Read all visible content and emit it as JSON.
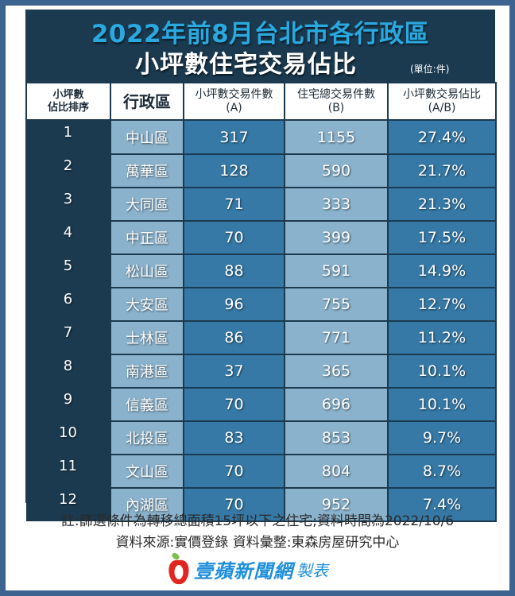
{
  "header": {
    "title_line1": "2022年前8月台北市各行政區",
    "title_line2": "小坪數住宅交易佔比",
    "unit": "(單位:件)"
  },
  "table": {
    "columns": [
      {
        "line1": "小坪數",
        "line2": "佔比排序"
      },
      {
        "line1": "行政區",
        "line2": ""
      },
      {
        "line1": "小坪數交易件數",
        "line2": "(A)"
      },
      {
        "line1": "住宅總交易件數",
        "line2": "(B)"
      },
      {
        "line1": "小坪數交易佔比",
        "line2": "(A/B)"
      }
    ],
    "rows": [
      {
        "rank": "1",
        "district": "中山區",
        "a": "317",
        "b": "1155",
        "ratio": "27.4%"
      },
      {
        "rank": "2",
        "district": "萬華區",
        "a": "128",
        "b": "590",
        "ratio": "21.7%"
      },
      {
        "rank": "3",
        "district": "大同區",
        "a": "71",
        "b": "333",
        "ratio": "21.3%"
      },
      {
        "rank": "4",
        "district": "中正區",
        "a": "70",
        "b": "399",
        "ratio": "17.5%"
      },
      {
        "rank": "5",
        "district": "松山區",
        "a": "88",
        "b": "591",
        "ratio": "14.9%"
      },
      {
        "rank": "6",
        "district": "大安區",
        "a": "96",
        "b": "755",
        "ratio": "12.7%"
      },
      {
        "rank": "7",
        "district": "士林區",
        "a": "86",
        "b": "771",
        "ratio": "11.2%"
      },
      {
        "rank": "8",
        "district": "南港區",
        "a": "37",
        "b": "365",
        "ratio": "10.1%"
      },
      {
        "rank": "9",
        "district": "信義區",
        "a": "70",
        "b": "696",
        "ratio": "10.1%"
      },
      {
        "rank": "10",
        "district": "北投區",
        "a": "83",
        "b": "853",
        "ratio": "9.7%"
      },
      {
        "rank": "11",
        "district": "文山區",
        "a": "70",
        "b": "804",
        "ratio": "8.7%"
      },
      {
        "rank": "12",
        "district": "內湖區",
        "a": "70",
        "b": "952",
        "ratio": "7.4%"
      }
    ]
  },
  "footer": {
    "note": "註:篩選條件為轉移總面積15坪以下之住宅;資料時間為2022/10/6",
    "source": "資料來源:實價登錄 資料彙整:東森房屋研究中心",
    "logo_text": "壹蘋新聞網",
    "logo_suffix": "製表"
  },
  "colors": {
    "frame": "#3d6491",
    "navy": "#1b3a50",
    "title_cyan": "#2aa9e0",
    "cell_dark": "#3679a6",
    "cell_light": "#8ab2cc",
    "logo_blue": "#1f8fdb",
    "logo_red": "#e0261f"
  }
}
